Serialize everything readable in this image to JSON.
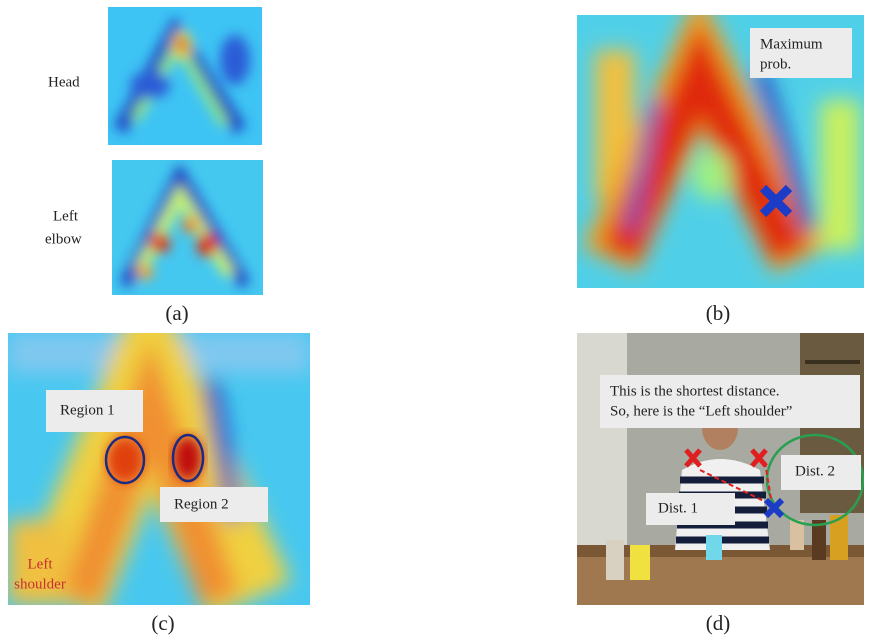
{
  "panels": {
    "a": {
      "caption": "(a)",
      "rows": [
        {
          "label": [
            "Head"
          ]
        },
        {
          "label": [
            "Left",
            "elbow"
          ]
        }
      ]
    },
    "b": {
      "caption": "(b)",
      "note": [
        "Maximum",
        "prob."
      ]
    },
    "c": {
      "caption": "(c)",
      "regions": [
        "Region 1",
        "Region 2"
      ],
      "joint": [
        "Left",
        "shoulder"
      ]
    },
    "d": {
      "caption": "(d)",
      "note": [
        "This is the shortest distance.",
        "So, here is the “Left shoulder”"
      ],
      "distances": [
        "Dist. 1",
        "Dist. 2"
      ]
    }
  }
}
